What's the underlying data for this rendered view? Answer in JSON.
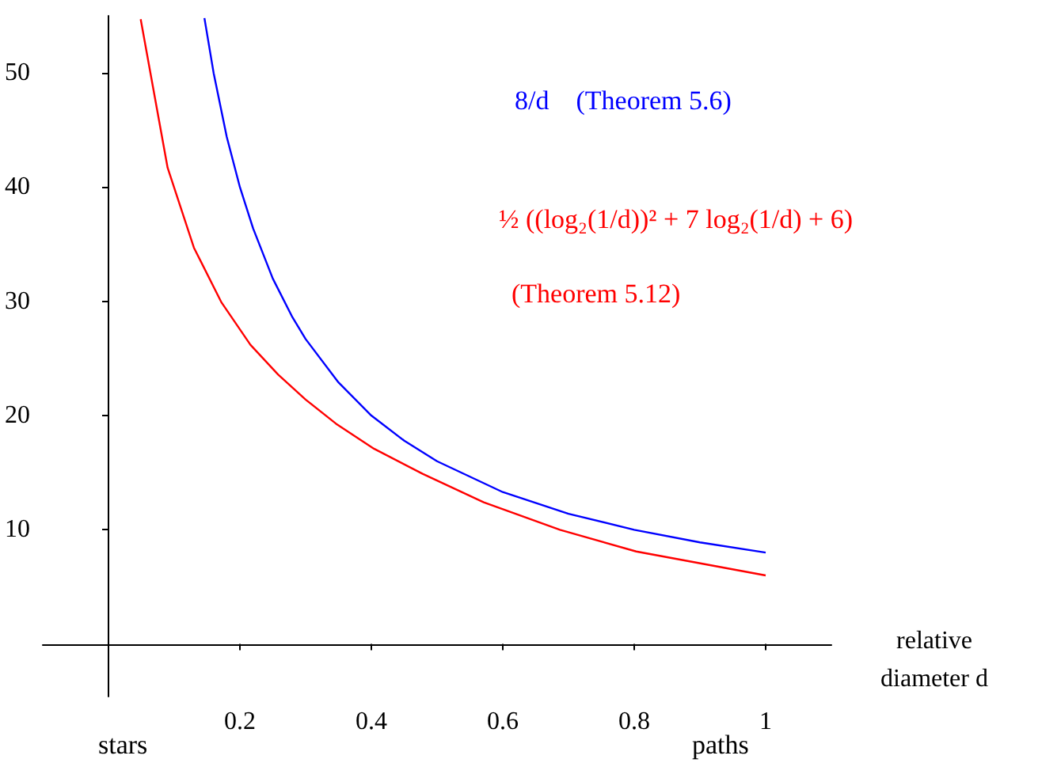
{
  "chart_data": {
    "type": "line",
    "xlabel": "relative diameter d",
    "xlim": [
      -0.1,
      1.1
    ],
    "xticks": [
      0.2,
      0.4,
      0.6,
      0.8,
      1
    ],
    "ylim": [
      -4.6,
      55
    ],
    "yticks": [
      10,
      20,
      30,
      40,
      50
    ],
    "series": [
      {
        "color": "#0000ff",
        "x": [
          0.146,
          0.16,
          0.18,
          0.2,
          0.22,
          0.25,
          0.28,
          0.3,
          0.35,
          0.4,
          0.45,
          0.5,
          0.6,
          0.7,
          0.8,
          0.9,
          1
        ],
        "values": [
          54.8,
          50,
          44.4,
          40,
          36.4,
          32,
          28.6,
          26.7,
          22.9,
          20,
          17.8,
          16,
          13.3,
          11.4,
          10,
          8.9,
          8
        ]
      },
      {
        "color": "#ff0000",
        "x": [
          0.049,
          0.09,
          0.13,
          0.172,
          0.216,
          0.258,
          0.3,
          0.346,
          0.404,
          0.478,
          0.571,
          0.687,
          0.803,
          1
        ],
        "values": [
          54.7,
          41.7,
          34.7,
          29.9,
          26.2,
          23.6,
          21.4,
          19.3,
          17.1,
          14.9,
          12.4,
          10,
          8.1,
          6
        ]
      }
    ],
    "annotations": [
      "8/d    (Theorem 5.6)",
      "½ ((log₂(1/d))² + 7 log₂(1/d) + 6)",
      "(Theorem 5.12)",
      "stars",
      "paths"
    ],
    "grid": false,
    "marker": "none",
    "line_style": "solid"
  }
}
